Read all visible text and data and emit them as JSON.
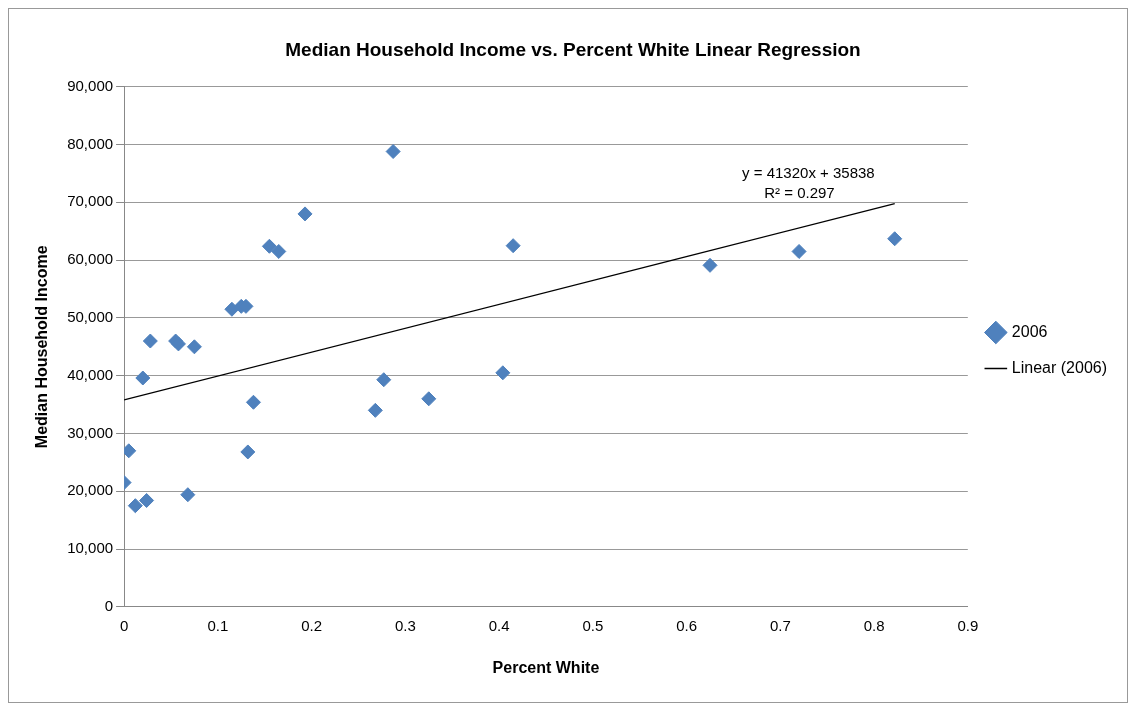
{
  "chart_data": {
    "type": "scatter",
    "title": "Median Household Income vs. Percent White Linear Regression",
    "xlabel": "Percent White",
    "ylabel": "Median Household Income",
    "x": [
      0.0,
      0.005,
      0.012,
      0.024,
      0.02,
      0.028,
      0.055,
      0.058,
      0.075,
      0.068,
      0.115,
      0.125,
      0.13,
      0.132,
      0.138,
      0.155,
      0.165,
      0.193,
      0.287,
      0.268,
      0.277,
      0.325,
      0.404,
      0.415,
      0.625,
      0.72,
      0.822
    ],
    "series": [
      {
        "name": "2006",
        "color": "#4f81bd",
        "marker": "diamond",
        "values": [
          21500,
          27000,
          17500,
          18400,
          39600,
          46000,
          46000,
          45500,
          45000,
          19400,
          51500,
          52000,
          52000,
          26800,
          35400,
          62400,
          61500,
          68000,
          78800,
          34000,
          39300,
          36000,
          40500,
          62500,
          59100,
          61500,
          63700
        ]
      },
      {
        "name": "Linear (2006)",
        "type": "line",
        "color": "#000000",
        "marker": "none",
        "x": [
          0,
          0.822
        ],
        "values": [
          35800,
          69800
        ]
      }
    ],
    "annotations": [
      "y = 41320x + 35838",
      "R² = 0.297"
    ],
    "xlim": [
      0,
      0.9
    ],
    "xticks": [
      0,
      0.1,
      0.2,
      0.3,
      0.4,
      0.5,
      0.6,
      0.7,
      0.8,
      0.9
    ],
    "ylim": [
      0,
      90000
    ],
    "yticks": [
      {
        "value": 0,
        "label": "0"
      },
      {
        "value": 10000,
        "label": "10,000"
      },
      {
        "value": 20000,
        "label": "20,000"
      },
      {
        "value": 30000,
        "label": "30,000"
      },
      {
        "value": 40000,
        "label": "40,000"
      },
      {
        "value": 50000,
        "label": "50,000"
      },
      {
        "value": 60000,
        "label": "60,000"
      },
      {
        "value": 70000,
        "label": "70,000"
      },
      {
        "value": 80000,
        "label": "80,000"
      },
      {
        "value": 90000,
        "label": "90,000"
      }
    ],
    "grid": "y",
    "legend": "right"
  }
}
